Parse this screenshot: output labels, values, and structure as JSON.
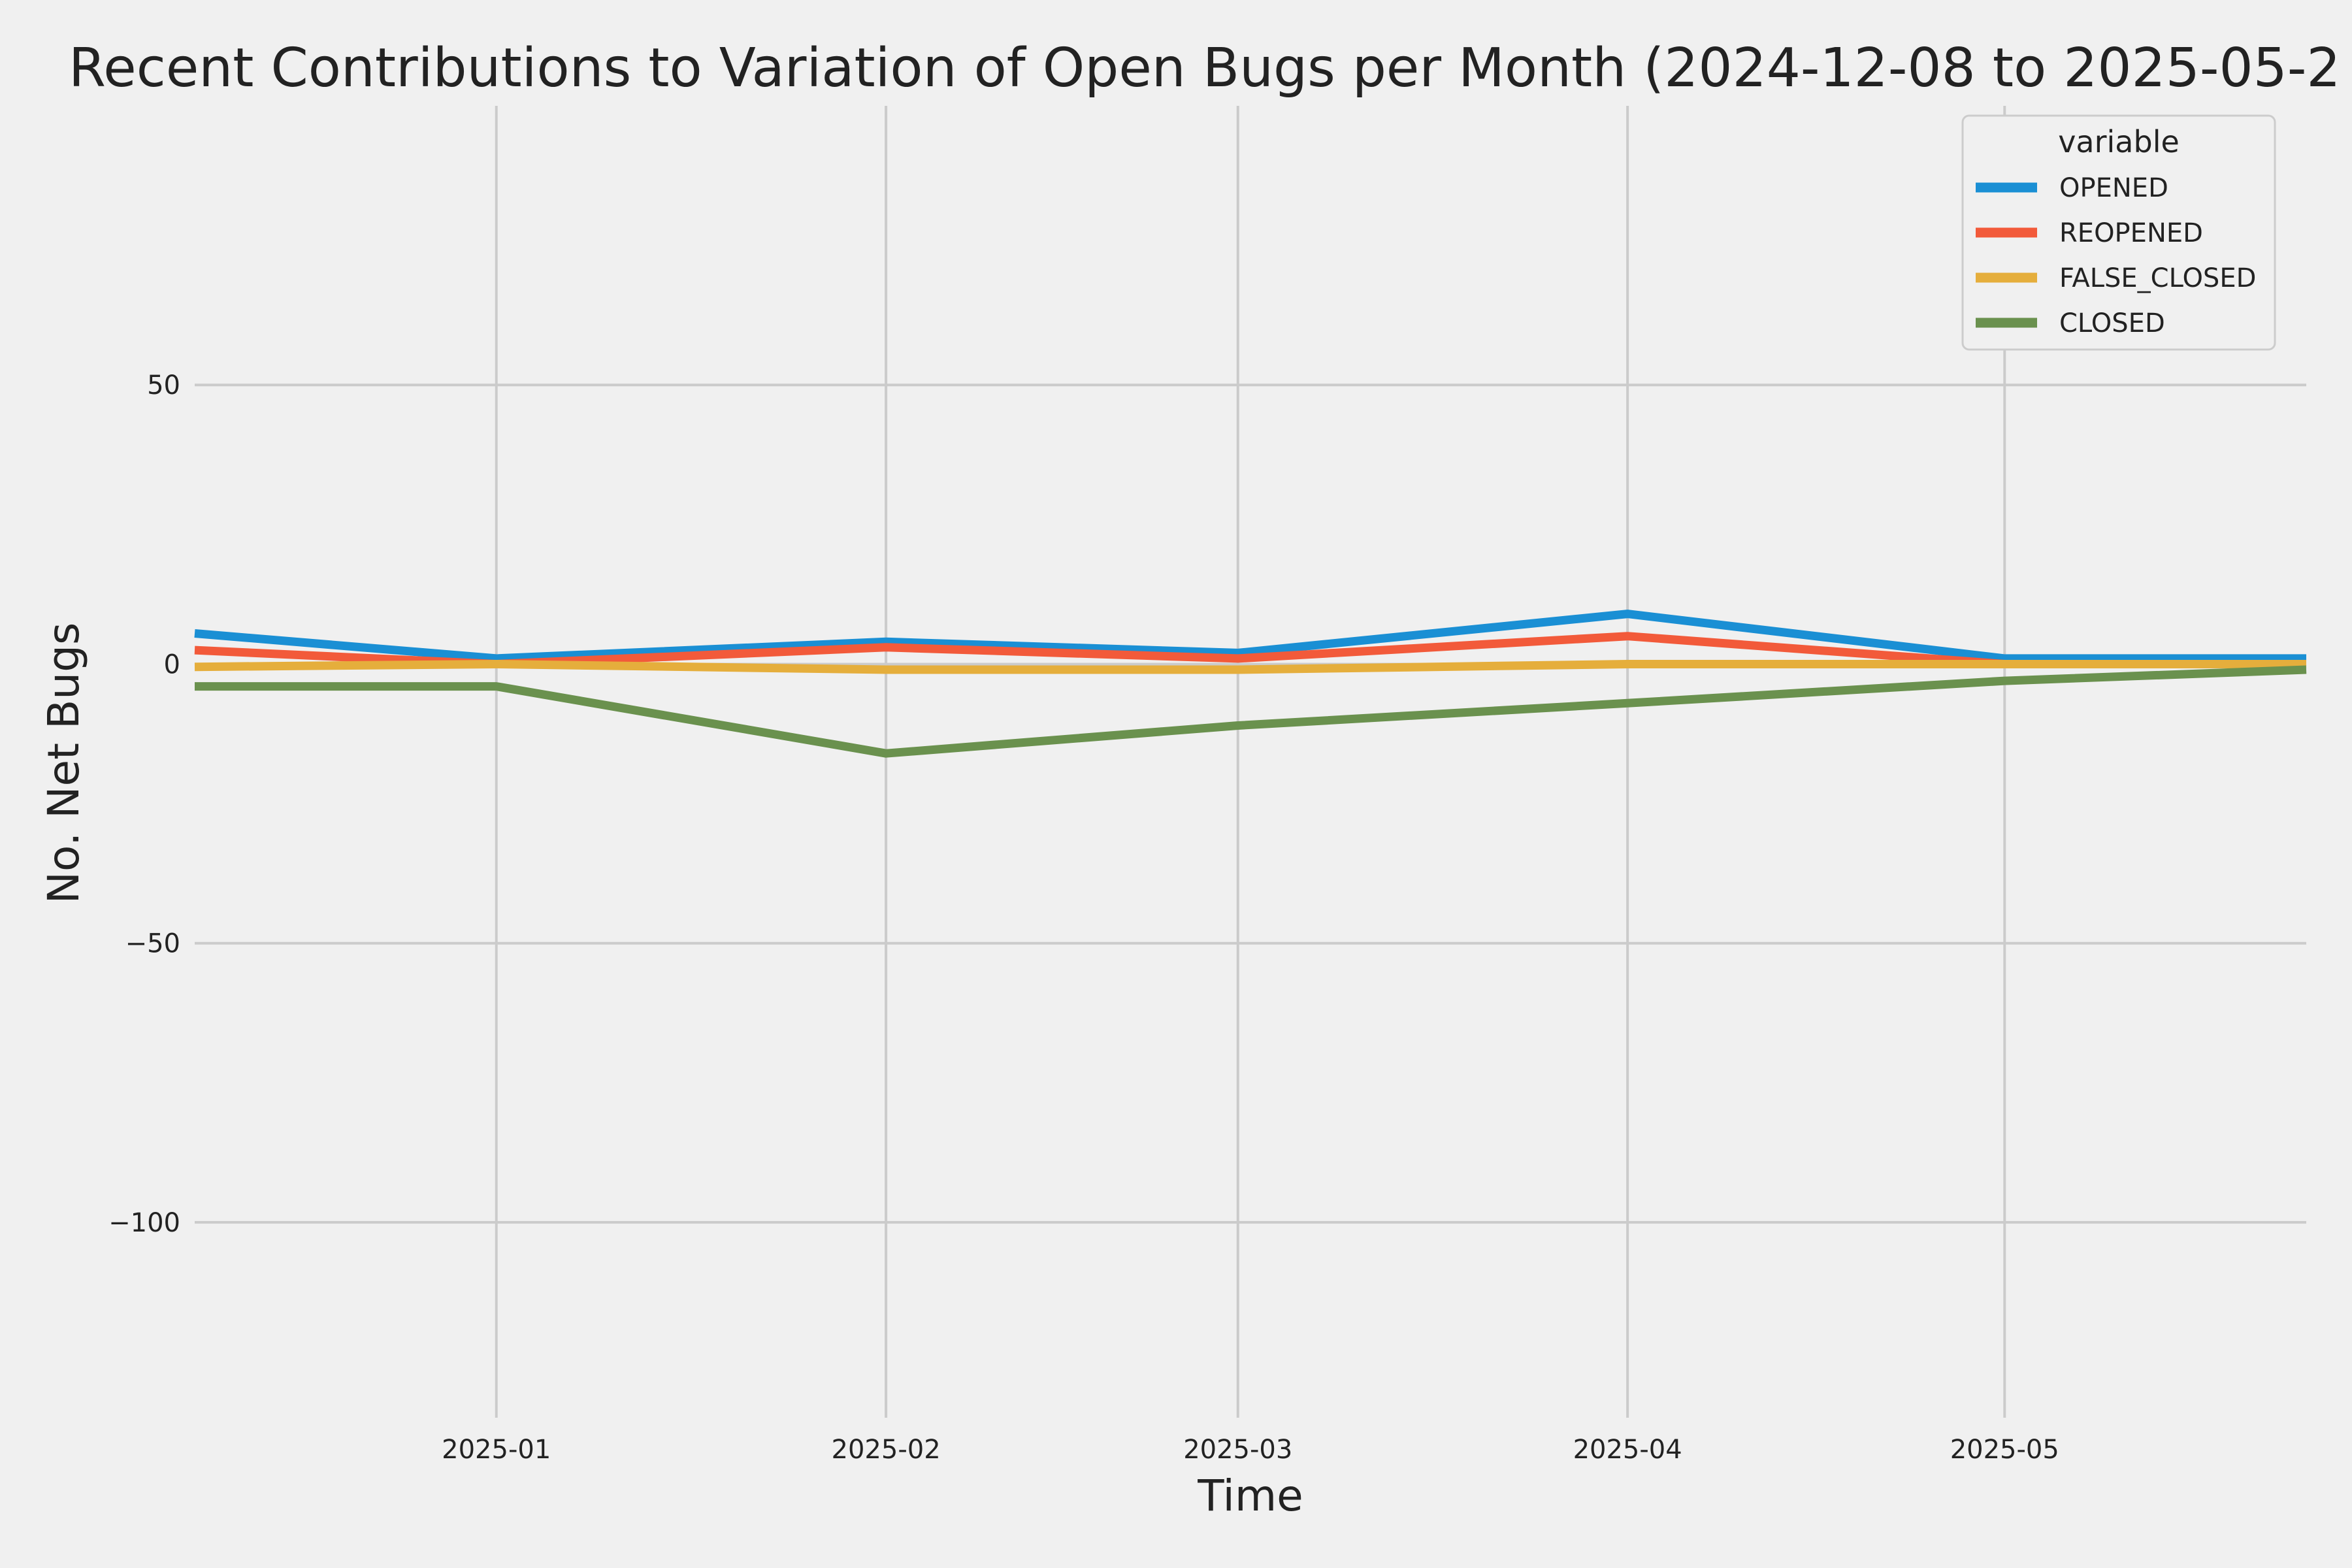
{
  "chart_data": {
    "type": "line",
    "title": "Recent Contributions to Variation of Open Bugs per Month (2024-12-08 to 2025-05-2",
    "xlabel": "Time",
    "ylabel": "No. Net Bugs",
    "x": [
      "2024-12-08",
      "2025-01-01",
      "2025-02-01",
      "2025-03-01",
      "2025-04-01",
      "2025-05-01",
      "2025-05-25"
    ],
    "x_ticks": [
      "2025-01",
      "2025-02",
      "2025-03",
      "2025-04",
      "2025-05"
    ],
    "x_range": [
      "2024-12-08",
      "2025-05-25"
    ],
    "ylim": [
      -135,
      100
    ],
    "y_ticks": [
      50,
      0,
      -50,
      -100
    ],
    "y_tick_labels": [
      "50",
      "0",
      "−50",
      "−100"
    ],
    "grid": true,
    "legend": {
      "title": "variable",
      "position": "top-right"
    },
    "series": [
      {
        "name": "OPENED",
        "color": "#1a8fd4",
        "values": [
          5.5,
          1,
          4,
          2,
          9,
          1,
          1
        ]
      },
      {
        "name": "REOPENED",
        "color": "#f25a3a",
        "values": [
          2.5,
          0,
          3,
          1,
          5,
          0,
          0
        ]
      },
      {
        "name": "FALSE_CLOSED",
        "color": "#e5ae3c",
        "values": [
          -0.5,
          0,
          -1,
          -1,
          0,
          0,
          0
        ]
      },
      {
        "name": "CLOSED",
        "color": "#6a914e",
        "values": [
          -4,
          -4,
          -16,
          -11,
          -7,
          -3,
          -1
        ]
      }
    ]
  }
}
